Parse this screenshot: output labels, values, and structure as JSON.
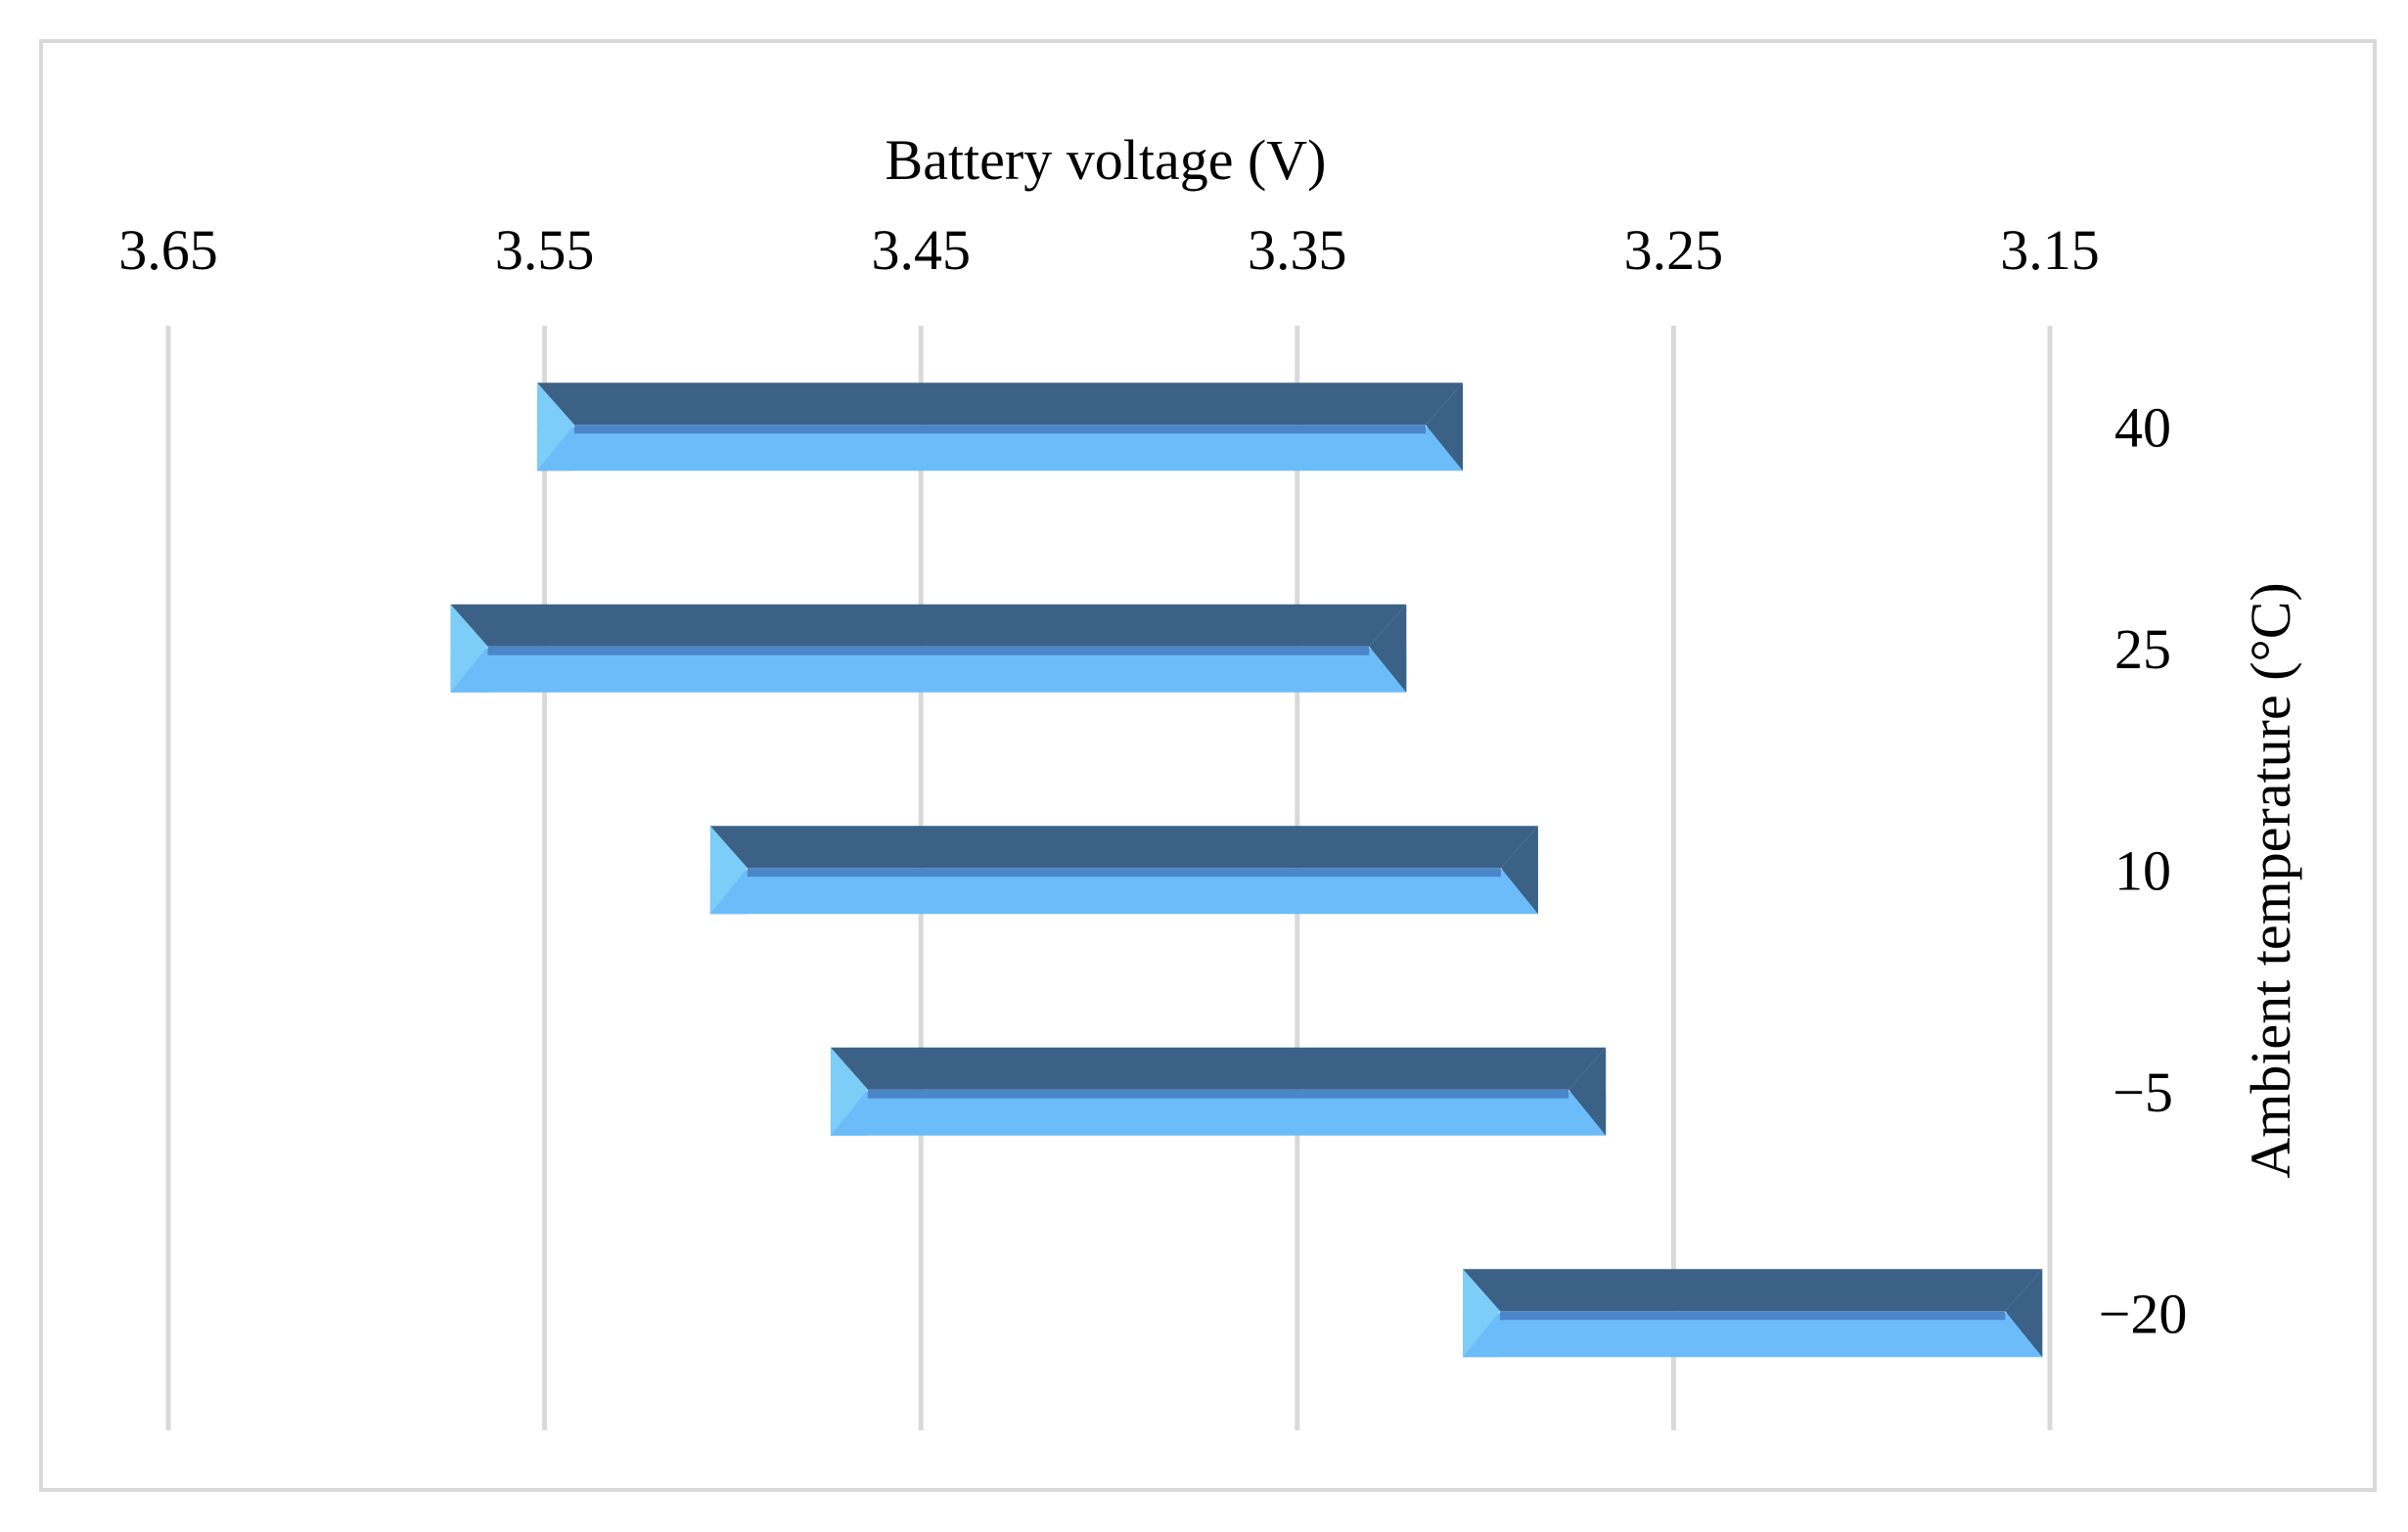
{
  "chart_data": {
    "type": "bar",
    "orientation": "horizontal-floating",
    "xlabel": "Battery voltage (V)",
    "ylabel": "Ambient temperature (°C)",
    "x_ticks": [
      "3.65",
      "3.55",
      "3.45",
      "3.35",
      "3.25",
      "3.15"
    ],
    "xlim": [
      3.65,
      3.15
    ],
    "x_reversed": true,
    "x_axis_position": "top",
    "y_axis_position": "right",
    "grid": true,
    "categories": [
      "40",
      "25",
      "10",
      "−5",
      "−20"
    ],
    "ranges": [
      {
        "category": "40",
        "high": 3.552,
        "low": 3.306
      },
      {
        "category": "25",
        "high": 3.575,
        "low": 3.321
      },
      {
        "category": "10",
        "high": 3.506,
        "low": 3.286
      },
      {
        "category": "−5",
        "high": 3.474,
        "low": 3.268
      },
      {
        "category": "−20",
        "high": 3.306,
        "low": 3.152
      }
    ],
    "colors": {
      "bar_top": "#3b6186",
      "bar_bottom": "#6cbcf9",
      "bar_mid": "#4a86c8",
      "bar_left_bevel": "#7ccdf7",
      "gridline": "#d9d9d9",
      "frame": "#d9d9d9"
    }
  }
}
